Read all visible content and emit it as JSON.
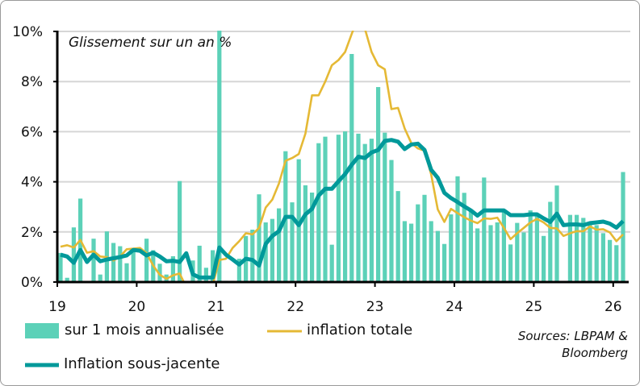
{
  "chart_data": {
    "type": "bar+line",
    "annotation": "Glissement sur un an %",
    "x_tick_labels": [
      "19",
      "20",
      "21",
      "22",
      "23",
      "24",
      "25",
      "26"
    ],
    "y_tick_labels": [
      "0%",
      "2%",
      "4%",
      "6%",
      "8%",
      "10%"
    ],
    "ylim": [
      0,
      10
    ],
    "grid": "horizontal",
    "legend_placement": "bottom",
    "start_month": "2019-01",
    "series": [
      {
        "name": "sur 1 mois annualisée",
        "kind": "bar",
        "color": "#5cd1b8",
        "values": [
          1.16,
          0.17,
          2.18,
          3.33,
          0.03,
          1.73,
          0.3,
          2.02,
          1.56,
          1.43,
          0.75,
          1.27,
          0.03,
          1.73,
          1.27,
          0.73,
          0.3,
          1.03,
          4.03,
          0,
          0.86,
          1.45,
          0.57,
          1.27,
          10.5,
          0.05,
          0.05,
          0.93,
          1.84,
          2.09,
          3.5,
          2.38,
          2.52,
          2.94,
          5.22,
          3.18,
          4.9,
          3.86,
          3.57,
          5.54,
          5.8,
          1.49,
          5.88,
          6.01,
          9.1,
          5.92,
          5.51,
          5.72,
          7.78,
          5.96,
          4.87,
          3.63,
          2.43,
          2.33,
          3.1,
          3.48,
          2.43,
          2.04,
          1.52,
          2.7,
          4.22,
          3.56,
          2.86,
          2.14,
          4.17,
          2.27,
          2.38,
          2.81,
          1.5,
          2.36,
          1.98,
          2.86,
          2.7,
          1.84,
          3.2,
          3.85,
          0,
          2.68,
          2.68,
          2.56,
          2.33,
          2.27,
          1.95,
          1.68,
          1.47,
          4.39
        ]
      },
      {
        "name": "inflation totale",
        "kind": "line",
        "color": "#e5b935",
        "values": [
          1.41,
          1.47,
          1.38,
          1.68,
          1.17,
          1.23,
          1.02,
          0.99,
          0.86,
          1.02,
          1.31,
          1.33,
          1.36,
          1.15,
          0.66,
          0.29,
          0.13,
          0.27,
          0.34,
          -0.2,
          -0.3,
          -0.3,
          -0.3,
          -0.1,
          0.88,
          0.93,
          1.36,
          1.63,
          1.95,
          1.9,
          2.16,
          2.97,
          3.29,
          3.93,
          4.84,
          4.95,
          5.11,
          5.92,
          7.45,
          7.45,
          8.0,
          8.65,
          8.86,
          9.18,
          9.9,
          10.6,
          10.1,
          9.18,
          8.65,
          8.49,
          6.9,
          6.95,
          6.13,
          5.55,
          5.33,
          5.24,
          4.3,
          2.9,
          2.4,
          2.92,
          2.75,
          2.59,
          2.45,
          2.35,
          2.54,
          2.52,
          2.57,
          2.16,
          1.71,
          1.95,
          2.16,
          2.38,
          2.52,
          2.38,
          2.16,
          2.14,
          1.84,
          1.95,
          2.03,
          2.03,
          2.22,
          2.09,
          2.11,
          1.98,
          1.63,
          1.9
        ]
      },
      {
        "name": "Inflation sous-jacente",
        "kind": "line",
        "color": "#00999a",
        "values": [
          1.09,
          1.02,
          0.77,
          1.28,
          0.8,
          1.09,
          0.83,
          0.9,
          0.95,
          1.0,
          1.06,
          1.28,
          1.25,
          1.06,
          1.17,
          1.02,
          0.83,
          0.85,
          0.8,
          1.15,
          0.31,
          0.18,
          0.18,
          0.18,
          1.38,
          1.09,
          0.9,
          0.7,
          0.93,
          0.88,
          0.66,
          1.52,
          1.84,
          2.03,
          2.6,
          2.6,
          2.27,
          2.7,
          2.92,
          3.45,
          3.72,
          3.72,
          4.02,
          4.31,
          4.68,
          5.0,
          4.95,
          5.17,
          5.27,
          5.63,
          5.67,
          5.6,
          5.31,
          5.49,
          5.52,
          5.27,
          4.48,
          4.16,
          3.56,
          3.35,
          3.19,
          3.02,
          2.86,
          2.65,
          2.86,
          2.86,
          2.86,
          2.86,
          2.67,
          2.67,
          2.67,
          2.7,
          2.7,
          2.54,
          2.4,
          2.73,
          2.27,
          2.3,
          2.3,
          2.27,
          2.35,
          2.38,
          2.41,
          2.33,
          2.17,
          2.43
        ]
      }
    ],
    "source": [
      "Sources: LBPAM &",
      "Bloomberg"
    ]
  }
}
